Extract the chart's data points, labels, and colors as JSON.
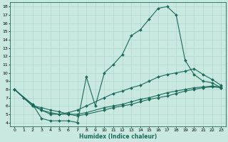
{
  "xlabel": "Humidex (Indice chaleur)",
  "xlim": [
    -0.5,
    23.5
  ],
  "ylim": [
    3.5,
    18.5
  ],
  "xticks": [
    0,
    1,
    2,
    3,
    4,
    5,
    6,
    7,
    8,
    9,
    10,
    11,
    12,
    13,
    14,
    15,
    16,
    17,
    18,
    19,
    20,
    21,
    22,
    23
  ],
  "yticks": [
    4,
    5,
    6,
    7,
    8,
    9,
    10,
    11,
    12,
    13,
    14,
    15,
    16,
    17,
    18
  ],
  "bg_color": "#c8e8e0",
  "line_color": "#1a6b5a",
  "grid_color": "#b0d8d0",
  "series": [
    {
      "x": [
        0,
        1,
        2,
        3,
        4,
        5,
        6,
        7,
        8,
        9,
        10,
        11,
        12,
        13,
        14,
        15,
        16,
        17,
        18,
        19,
        20,
        21,
        22,
        23
      ],
      "y": [
        8.0,
        7.0,
        6.2,
        4.5,
        4.2,
        4.2,
        4.2,
        4.0,
        9.5,
        6.0,
        10.0,
        11.0,
        12.2,
        14.5,
        15.2,
        16.5,
        17.8,
        18.0,
        17.0,
        11.5,
        9.8,
        9.0,
        8.8,
        8.2
      ]
    },
    {
      "x": [
        0,
        2,
        3,
        4,
        5,
        6,
        7,
        8,
        10,
        11,
        12,
        13,
        14,
        15,
        16,
        17,
        18,
        19,
        20,
        21,
        22,
        23
      ],
      "y": [
        8.0,
        6.2,
        5.5,
        5.0,
        5.0,
        5.2,
        5.5,
        6.0,
        7.0,
        7.5,
        7.8,
        8.2,
        8.5,
        9.0,
        9.5,
        9.8,
        10.0,
        10.2,
        10.5,
        9.8,
        9.2,
        8.5
      ]
    },
    {
      "x": [
        0,
        2,
        3,
        4,
        5,
        6,
        7,
        8,
        10,
        11,
        12,
        13,
        14,
        15,
        16,
        17,
        18,
        19,
        20,
        21,
        22,
        23
      ],
      "y": [
        8.0,
        6.0,
        5.5,
        5.2,
        5.0,
        5.0,
        5.0,
        5.2,
        5.8,
        6.0,
        6.2,
        6.5,
        6.8,
        7.0,
        7.3,
        7.6,
        7.8,
        8.0,
        8.2,
        8.3,
        8.4,
        8.3
      ]
    },
    {
      "x": [
        0,
        2,
        3,
        4,
        5,
        6,
        7,
        8,
        10,
        11,
        12,
        13,
        14,
        15,
        16,
        17,
        18,
        19,
        20,
        21,
        22,
        23
      ],
      "y": [
        8.0,
        6.0,
        5.8,
        5.5,
        5.3,
        5.0,
        4.8,
        5.0,
        5.5,
        5.8,
        6.0,
        6.2,
        6.5,
        6.8,
        7.0,
        7.2,
        7.5,
        7.8,
        8.0,
        8.2,
        8.3,
        8.2
      ]
    }
  ]
}
